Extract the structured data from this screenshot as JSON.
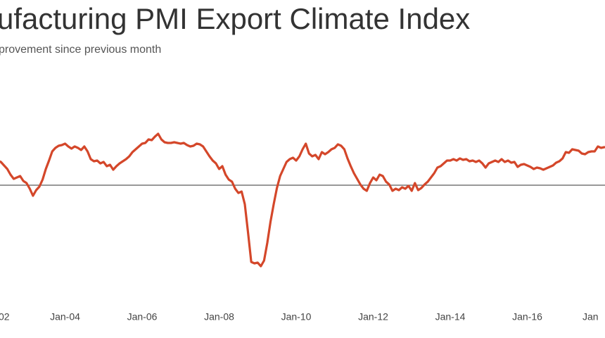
{
  "chart_data": {
    "type": "line",
    "title": "ufacturing PMI Export Climate Index",
    "subtitle": "provement since previous month",
    "reference_line": 50,
    "ylim": [
      35,
      62
    ],
    "categories": [
      "02",
      null,
      null,
      null,
      null,
      null,
      null,
      null,
      null,
      null,
      null,
      null,
      null,
      null,
      null,
      null,
      null,
      null,
      null,
      null,
      null,
      null,
      null,
      null,
      "Jan-04",
      null,
      null,
      null,
      null,
      null,
      null,
      null,
      null,
      null,
      null,
      null,
      null,
      null,
      null,
      null,
      null,
      null,
      null,
      null,
      null,
      null,
      null,
      null,
      "Jan-06",
      null,
      null,
      null,
      null,
      null,
      null,
      null,
      null,
      null,
      null,
      null,
      null,
      null,
      null,
      null,
      null,
      null,
      null,
      null,
      null,
      null,
      null,
      null,
      "Jan-08",
      null,
      null,
      null,
      null,
      null,
      null,
      null,
      null,
      null,
      null,
      null,
      null,
      null,
      null,
      null,
      null,
      null,
      null,
      null,
      null,
      null,
      null,
      null,
      "Jan-10",
      null,
      null,
      null,
      null,
      null,
      null,
      null,
      null,
      null,
      null,
      null,
      null,
      null,
      null,
      null,
      null,
      null,
      null,
      null,
      null,
      null,
      null,
      null,
      "Jan-12",
      null,
      null,
      null,
      null,
      null,
      null,
      null,
      null,
      null,
      null,
      null,
      null,
      null,
      null,
      null,
      null,
      null,
      null,
      null,
      null,
      null,
      null,
      null,
      "Jan-14",
      null,
      null,
      null,
      null,
      null,
      null,
      null,
      null,
      null,
      null,
      null,
      null,
      null,
      null,
      null,
      null,
      null,
      null,
      null,
      null,
      null,
      null,
      null,
      "Jan-16",
      null,
      null,
      null,
      null,
      null,
      null,
      null,
      null,
      null,
      null,
      null,
      null,
      null,
      null,
      null,
      null,
      null,
      null,
      null,
      null,
      null,
      null,
      null,
      "Jan"
    ],
    "series": [
      {
        "color": "#d4472a",
        "values": [
          54.1,
          53.9,
          53.7,
          53.5,
          53.3,
          52.8,
          52.3,
          51.5,
          50.9,
          51.1,
          51.3,
          50.6,
          50.3,
          49.5,
          48.5,
          49.3,
          49.8,
          50.8,
          52.3,
          53.5,
          54.8,
          55.3,
          55.6,
          55.7,
          55.9,
          55.5,
          55.2,
          55.5,
          55.3,
          55.0,
          55.5,
          54.8,
          53.7,
          53.4,
          53.5,
          53.1,
          53.3,
          52.7,
          52.9,
          52.2,
          52.7,
          53.1,
          53.4,
          53.7,
          54.1,
          54.7,
          55.1,
          55.5,
          55.9,
          56.0,
          56.5,
          56.4,
          56.9,
          57.3,
          56.5,
          56.1,
          56.0,
          56.0,
          56.1,
          56.0,
          55.9,
          56.0,
          55.7,
          55.5,
          55.6,
          55.9,
          55.8,
          55.5,
          54.8,
          54.1,
          53.5,
          53.1,
          52.3,
          52.7,
          51.5,
          50.8,
          50.5,
          49.5,
          48.9,
          49.1,
          47.3,
          43.3,
          39.1,
          38.9,
          39.0,
          38.5,
          39.3,
          41.8,
          44.8,
          47.3,
          49.6,
          51.3,
          52.3,
          53.3,
          53.7,
          53.9,
          53.5,
          54.1,
          55.1,
          55.9,
          54.5,
          54.1,
          54.3,
          53.7,
          54.7,
          54.4,
          54.7,
          55.1,
          55.3,
          55.8,
          55.6,
          55.1,
          53.8,
          52.7,
          51.7,
          50.9,
          50.1,
          49.5,
          49.2,
          50.3,
          51.1,
          50.7,
          51.5,
          51.3,
          50.5,
          50.1,
          49.2,
          49.5,
          49.3,
          49.7,
          49.5,
          49.9,
          49.2,
          50.3,
          49.3,
          49.6,
          50.1,
          50.5,
          51.1,
          51.7,
          52.5,
          52.7,
          53.1,
          53.5,
          53.5,
          53.7,
          53.5,
          53.8,
          53.6,
          53.7,
          53.4,
          53.5,
          53.3,
          53.5,
          53.1,
          52.5,
          53.1,
          53.3,
          53.5,
          53.3,
          53.7,
          53.3,
          53.5,
          53.2,
          53.3,
          52.6,
          52.9,
          53.0,
          52.8,
          52.6,
          52.3,
          52.5,
          52.4,
          52.2,
          52.4,
          52.6,
          52.8,
          53.2,
          53.4,
          53.8,
          54.7,
          54.6,
          55.1,
          55.0,
          54.9,
          54.5,
          54.4,
          54.7,
          54.8,
          54.8,
          55.5,
          55.3,
          55.4
        ]
      }
    ]
  }
}
